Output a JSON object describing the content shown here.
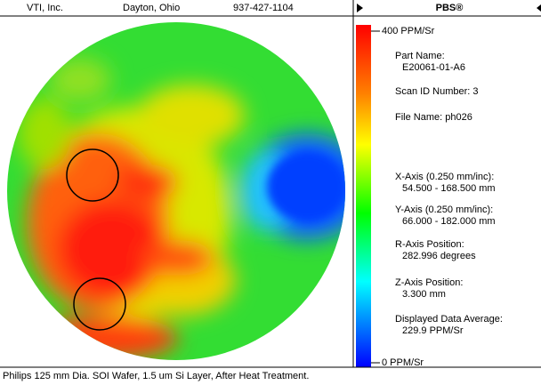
{
  "header": {
    "company": "VTI, Inc.",
    "city": "Dayton, Ohio",
    "phone": "937-427-1104",
    "panel_title": "PBS®"
  },
  "scale": {
    "top_label": "400 PPM/Sr",
    "bottom_label": "0 PPM/Sr"
  },
  "info": [
    {
      "label": "Part Name:",
      "value": "E20061-01-A6"
    },
    {
      "label": "Scan ID Number: 3"
    },
    {
      "label": "File Name: ph026"
    },
    {
      "label": "X-Axis (0.250 mm/inc):",
      "value": "54.500 - 168.500 mm"
    },
    {
      "label": "Y-Axis (0.250 mm/inc):",
      "value": "66.000 - 182.000 mm"
    },
    {
      "label": "R-Axis Position:",
      "value": "282.996 degrees"
    },
    {
      "label": "Z-Axis Position:",
      "value": "3.300 mm"
    },
    {
      "label": "Displayed Data Average:",
      "value": "229.9 PPM/Sr"
    }
  ],
  "footer": "Philips 125 mm Dia. SOI Wafer, 1.5 um Si Layer, After Heat Treatment."
}
